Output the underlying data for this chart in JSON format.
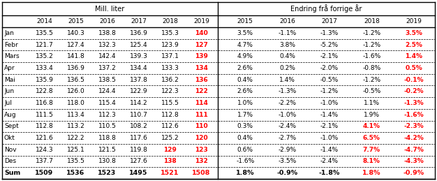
{
  "headers_left": [
    "",
    "2014",
    "2015",
    "2016",
    "2017",
    "2018",
    "2019"
  ],
  "headers_right": [
    "2015",
    "2016",
    "2017",
    "2018",
    "2019"
  ],
  "section_left": "Mill. liter",
  "section_right": "Endring frå forrige år",
  "rows": [
    {
      "month": "Jan",
      "mill": [
        "135.5",
        "140.3",
        "138.8",
        "136.9",
        "135.3",
        "140"
      ],
      "pct": [
        "3.5%",
        "-1.1%",
        "-1.3%",
        "-1.2%",
        "3.5%"
      ]
    },
    {
      "month": "Febr",
      "mill": [
        "121.7",
        "127.4",
        "132.3",
        "125.4",
        "123.9",
        "127"
      ],
      "pct": [
        "4.7%",
        "3.8%",
        "-5.2%",
        "-1.2%",
        "2.5%"
      ]
    },
    {
      "month": "Mars",
      "mill": [
        "135.2",
        "141.8",
        "142.4",
        "139.3",
        "137.1",
        "139"
      ],
      "pct": [
        "4.9%",
        "0.4%",
        "-2.1%",
        "-1.6%",
        "1.4%"
      ]
    },
    {
      "month": "Apr",
      "mill": [
        "133.4",
        "136.9",
        "137.2",
        "134.4",
        "133.3",
        "134"
      ],
      "pct": [
        "2.6%",
        "0.2%",
        "-2.0%",
        "-0.8%",
        "0.5%"
      ]
    },
    {
      "month": "Mai",
      "mill": [
        "135.9",
        "136.5",
        "138.5",
        "137.8",
        "136.2",
        "136"
      ],
      "pct": [
        "0.4%",
        "1.4%",
        "-0.5%",
        "-1.2%",
        "-0.1%"
      ]
    },
    {
      "month": "Jun",
      "mill": [
        "122.8",
        "126.0",
        "124.4",
        "122.9",
        "122.3",
        "122"
      ],
      "pct": [
        "2.6%",
        "-1.3%",
        "-1.2%",
        "-0.5%",
        "-0.2%"
      ]
    },
    {
      "month": "Jul",
      "mill": [
        "116.8",
        "118.0",
        "115.4",
        "114.2",
        "115.5",
        "114"
      ],
      "pct": [
        "1.0%",
        "-2.2%",
        "-1.0%",
        "1.1%",
        "-1.3%"
      ]
    },
    {
      "month": "Aug",
      "mill": [
        "111.5",
        "113.4",
        "112.3",
        "110.7",
        "112.8",
        "111"
      ],
      "pct": [
        "1.7%",
        "-1.0%",
        "-1.4%",
        "1.9%",
        "-1.6%"
      ]
    },
    {
      "month": "Sept",
      "mill": [
        "112.8",
        "113.2",
        "110.5",
        "108.2",
        "112.6",
        "110"
      ],
      "pct": [
        "0.3%",
        "-2.4%",
        "-2.1%",
        "4.1%",
        "-2.3%"
      ]
    },
    {
      "month": "Okt",
      "mill": [
        "121.6",
        "122.2",
        "118.8",
        "117.6",
        "125.2",
        "120"
      ],
      "pct": [
        "0.4%",
        "-2.7%",
        "-1.0%",
        "6.5%",
        "-4.2%"
      ]
    },
    {
      "month": "Nov",
      "mill": [
        "124.3",
        "125.1",
        "121.5",
        "119.8",
        "129",
        "123"
      ],
      "pct": [
        "0.6%",
        "-2.9%",
        "-1.4%",
        "7.7%",
        "-4.7%"
      ]
    },
    {
      "month": "Des",
      "mill": [
        "137.7",
        "135.5",
        "130.8",
        "127.6",
        "138",
        "132"
      ],
      "pct": [
        "-1.6%",
        "-3.5%",
        "-2.4%",
        "8.1%",
        "-4.3%"
      ]
    },
    {
      "month": "Sum",
      "mill": [
        "1509",
        "1536",
        "1523",
        "1495",
        "1521",
        "1508"
      ],
      "pct": [
        "1.8%",
        "-0.9%",
        "-1.8%",
        "1.8%",
        "-0.9%"
      ]
    }
  ],
  "red_mill_cols": {
    "Jan": [
      5
    ],
    "Febr": [
      5
    ],
    "Mars": [
      5
    ],
    "Apr": [
      5
    ],
    "Mai": [
      5
    ],
    "Jun": [
      5
    ],
    "Jul": [
      5
    ],
    "Aug": [
      5
    ],
    "Sept": [
      5
    ],
    "Okt": [
      5
    ],
    "Nov": [
      4,
      5
    ],
    "Des": [
      4,
      5
    ],
    "Sum": [
      4,
      5
    ]
  },
  "red_pct_cols": {
    "Jan": [
      4
    ],
    "Febr": [
      4
    ],
    "Mars": [
      4
    ],
    "Apr": [
      4
    ],
    "Mai": [
      4
    ],
    "Jun": [
      4
    ],
    "Jul": [
      4
    ],
    "Aug": [
      4
    ],
    "Sept": [
      3,
      4
    ],
    "Okt": [
      3,
      4
    ],
    "Nov": [
      3,
      4
    ],
    "Des": [
      3,
      4
    ],
    "Sum": [
      3,
      4
    ]
  },
  "figsize": [
    6.26,
    2.59
  ],
  "dpi": 100
}
